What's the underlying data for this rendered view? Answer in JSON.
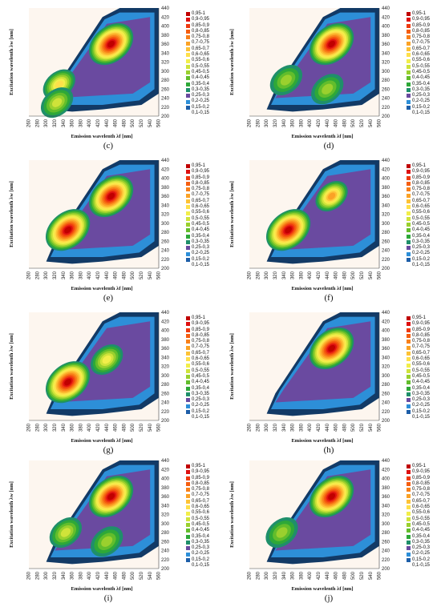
{
  "figure": {
    "x_ticks": [
      "260",
      "280",
      "300",
      "320",
      "340",
      "360",
      "380",
      "400",
      "420",
      "440",
      "460",
      "480",
      "500",
      "520",
      "540",
      "560"
    ],
    "y_ticks": [
      "440",
      "420",
      "400",
      "380",
      "360",
      "340",
      "320",
      "300",
      "280",
      "260",
      "240",
      "220",
      "200"
    ],
    "xlabel": "Emission wavelenth λf [nm]",
    "ylabel": "Excitation wavelenth λw [nm]"
  },
  "legend": {
    "items": [
      {
        "label": "0,95-1",
        "color": "#c00000"
      },
      {
        "label": "0,9-0,95",
        "color": "#de1010"
      },
      {
        "label": "0,85-0,9",
        "color": "#ee3a10"
      },
      {
        "label": "0,8-0,85",
        "color": "#f55e10"
      },
      {
        "label": "0,75-0,8",
        "color": "#f8801a"
      },
      {
        "label": "0,7-0,75",
        "color": "#fba226"
      },
      {
        "label": "0,65-0,7",
        "color": "#fdc236"
      },
      {
        "label": "0,6-0,65",
        "color": "#fee04a"
      },
      {
        "label": "0,55-0,6",
        "color": "#f2ee4a"
      },
      {
        "label": "0,5-0,55",
        "color": "#cfe33a"
      },
      {
        "label": "0,45-0,5",
        "color": "#9ad02e"
      },
      {
        "label": "0,4-0,45",
        "color": "#62bd2c"
      },
      {
        "label": "0,35-0,4",
        "color": "#2ea838"
      },
      {
        "label": "0,3-0,35",
        "color": "#1f8f6a"
      },
      {
        "label": "0,25-0,3",
        "color": "#6a4aa0"
      },
      {
        "label": "0,2-0,25",
        "color": "#2d8fd8"
      },
      {
        "label": "0,15-0,2",
        "color": "#1d5ea8"
      },
      {
        "label": "0,1-0,15",
        "color": "#ffffff"
      }
    ]
  },
  "colors": {
    "plot_background": "#fdf6ef",
    "outer_band": "#123a66"
  },
  "panels": [
    {
      "caption": "(c)"
    },
    {
      "caption": "(d)"
    },
    {
      "caption": "(e)"
    },
    {
      "caption": "(f)"
    },
    {
      "caption": "(g)"
    },
    {
      "caption": "(h)"
    },
    {
      "caption": "(i)"
    },
    {
      "caption": "(j)"
    }
  ],
  "chart_data": [
    {
      "type": "contour",
      "panel": "(c)",
      "xlabel": "Emission wavelenth λf [nm]",
      "ylabel": "Excitation wavelenth λw [nm]",
      "xlim": [
        260,
        560
      ],
      "ylim": [
        200,
        440
      ],
      "peaks": [
        {
          "x": 450,
          "y": 360,
          "level": 0.95
        },
        {
          "x": 330,
          "y": 270,
          "level": 0.6
        },
        {
          "x": 325,
          "y": 230,
          "level": 0.5
        }
      ]
    },
    {
      "type": "contour",
      "panel": "(d)",
      "xlabel": "Emission wavelenth λf [nm]",
      "ylabel": "Excitation wavelenth λw [nm]",
      "xlim": [
        260,
        560
      ],
      "ylim": [
        200,
        440
      ],
      "peaks": [
        {
          "x": 450,
          "y": 360,
          "level": 0.95
        },
        {
          "x": 345,
          "y": 280,
          "level": 0.45
        },
        {
          "x": 440,
          "y": 260,
          "level": 0.3
        }
      ]
    },
    {
      "type": "contour",
      "panel": "(e)",
      "xlabel": "Emission wavelenth λf [nm]",
      "ylabel": "Excitation wavelenth λw [nm]",
      "xlim": [
        260,
        560
      ],
      "ylim": [
        200,
        440
      ],
      "peaks": [
        {
          "x": 450,
          "y": 360,
          "level": 0.95
        },
        {
          "x": 350,
          "y": 285,
          "level": 0.95
        }
      ]
    },
    {
      "type": "contour",
      "panel": "(f)",
      "xlabel": "Emission wavelenth λf [nm]",
      "ylabel": "Excitation wavelenth λw [nm]",
      "xlim": [
        260,
        560
      ],
      "ylim": [
        200,
        440
      ],
      "peaks": [
        {
          "x": 450,
          "y": 360,
          "level": 0.7
        },
        {
          "x": 350,
          "y": 285,
          "level": 0.95
        }
      ]
    },
    {
      "type": "contour",
      "panel": "(g)",
      "xlabel": "Emission wavelenth λf [nm]",
      "ylabel": "Excitation wavelenth λw [nm]",
      "xlim": [
        260,
        560
      ],
      "ylim": [
        200,
        440
      ],
      "peaks": [
        {
          "x": 350,
          "y": 285,
          "level": 0.95
        },
        {
          "x": 440,
          "y": 335,
          "level": 0.55
        }
      ]
    },
    {
      "type": "contour",
      "panel": "(h)",
      "xlabel": "Emission wavelenth λf [nm]",
      "ylabel": "Excitation wavelenth λw [nm]",
      "xlim": [
        260,
        560
      ],
      "ylim": [
        200,
        440
      ],
      "peaks": [
        {
          "x": 450,
          "y": 360,
          "level": 0.95
        }
      ]
    },
    {
      "type": "contour",
      "panel": "(i)",
      "xlabel": "Emission wavelenth λf [nm]",
      "ylabel": "Excitation wavelenth λw [nm]",
      "xlim": [
        260,
        560
      ],
      "ylim": [
        200,
        440
      ],
      "peaks": [
        {
          "x": 450,
          "y": 360,
          "level": 0.95
        },
        {
          "x": 345,
          "y": 280,
          "level": 0.5
        },
        {
          "x": 440,
          "y": 260,
          "level": 0.4
        }
      ]
    },
    {
      "type": "contour",
      "panel": "(j)",
      "xlabel": "Emission wavelenth λf [nm]",
      "ylabel": "Excitation wavelenth λw [nm]",
      "xlim": [
        260,
        560
      ],
      "ylim": [
        200,
        440
      ],
      "peaks": [
        {
          "x": 450,
          "y": 360,
          "level": 0.95
        },
        {
          "x": 335,
          "y": 280,
          "level": 0.4
        }
      ]
    }
  ]
}
